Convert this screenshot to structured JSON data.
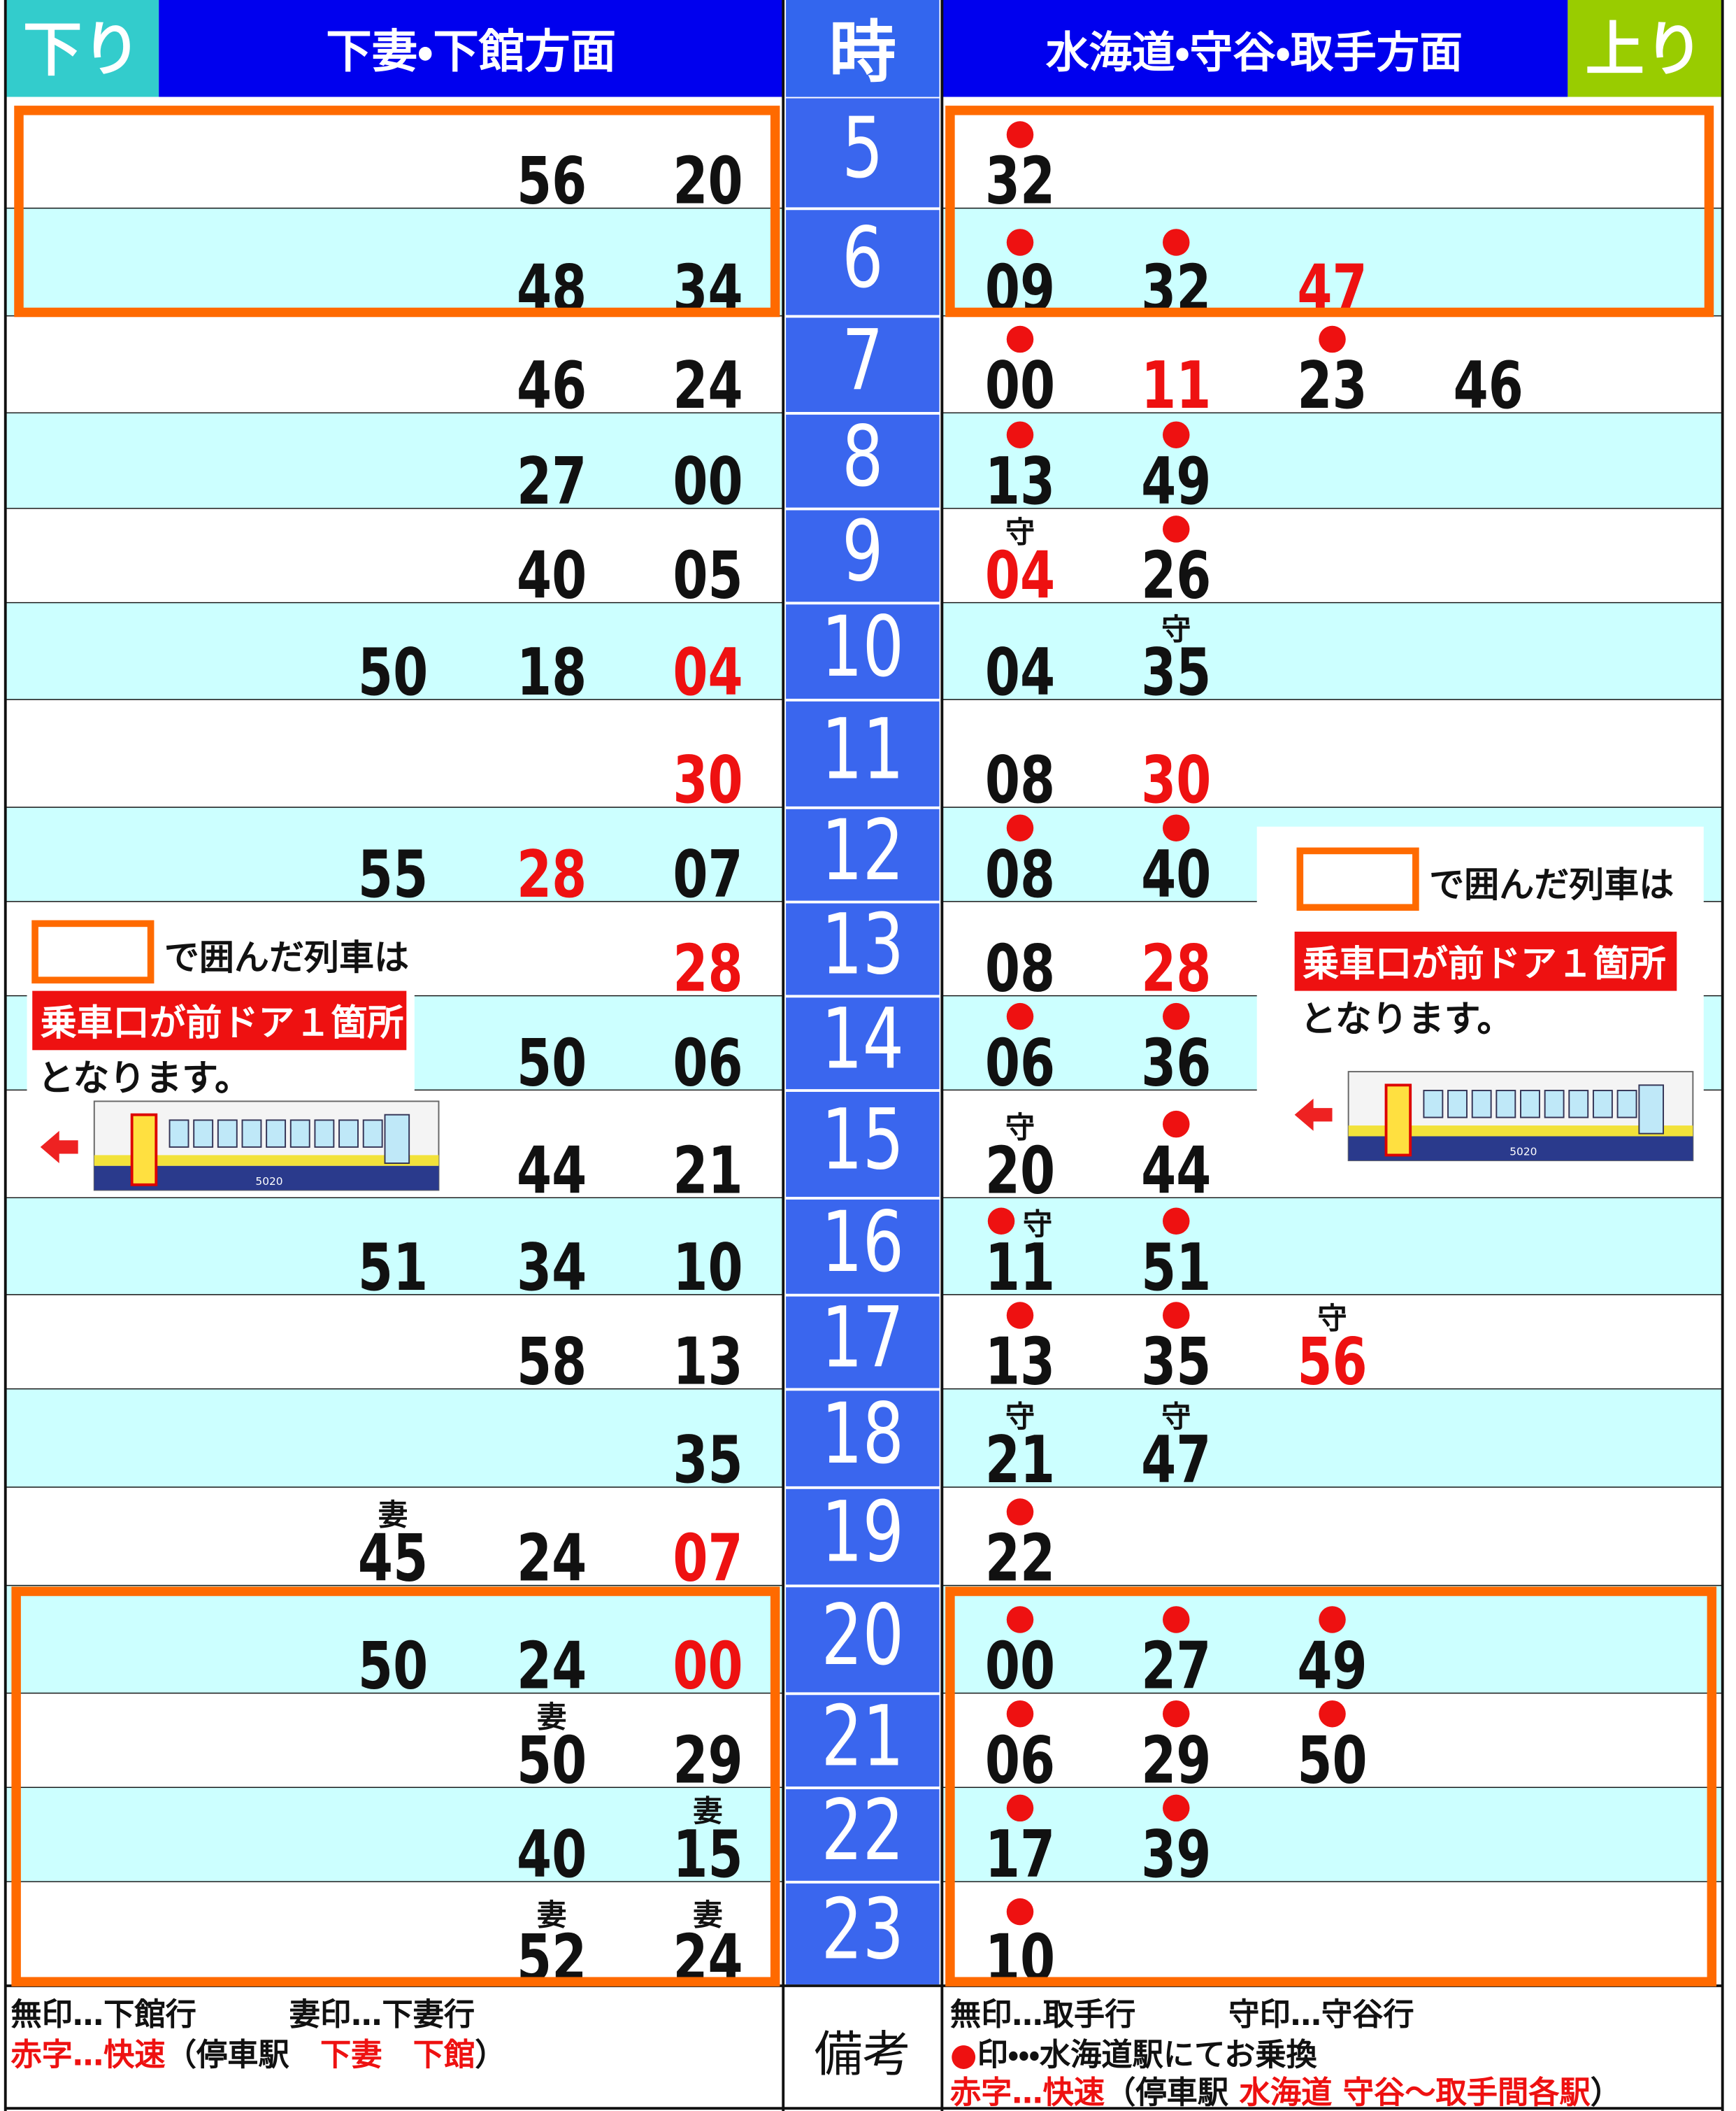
{
  "header": {
    "down_label": "下り",
    "down_direction": "下妻・下館方面",
    "hour_label": "時",
    "up_direction": "水海道・守谷・取手方面",
    "up_label": "上り"
  },
  "rows": [
    {
      "hour": 5,
      "down": [
        {
          "time": "56"
        },
        {
          "time": "20"
        }
      ],
      "up": [
        {
          "time": "32",
          "transfer": true
        }
      ]
    },
    {
      "hour": 6,
      "down": [
        {
          "time": "48"
        },
        {
          "time": "34"
        }
      ],
      "up": [
        {
          "time": "09",
          "transfer": true
        },
        {
          "time": "32",
          "transfer": true
        },
        {
          "time": "47",
          "rapid": true
        }
      ]
    },
    {
      "hour": 7,
      "down": [
        {
          "time": "46"
        },
        {
          "time": "24"
        }
      ],
      "up": [
        {
          "time": "00",
          "transfer": true
        },
        {
          "time": "11",
          "rapid": true
        },
        {
          "time": "23",
          "transfer": true
        },
        {
          "time": "46"
        }
      ]
    },
    {
      "hour": 8,
      "down": [
        {
          "time": "27"
        },
        {
          "time": "00"
        }
      ],
      "up": [
        {
          "time": "13",
          "transfer": true
        },
        {
          "time": "49",
          "transfer": true
        }
      ]
    },
    {
      "hour": 9,
      "down": [
        {
          "time": "40"
        },
        {
          "time": "05"
        }
      ],
      "up": [
        {
          "time": "04",
          "rapid": true,
          "mark": "守"
        },
        {
          "time": "26",
          "transfer": true
        }
      ]
    },
    {
      "hour": 10,
      "down": [
        {
          "time": "50"
        },
        {
          "time": "18"
        },
        {
          "time": "04",
          "rapid": true
        }
      ],
      "up": [
        {
          "time": "04"
        },
        {
          "time": "35",
          "mark": "守"
        }
      ]
    },
    {
      "hour": 11,
      "down": [
        {
          "time": "30",
          "rapid": true
        }
      ],
      "up": [
        {
          "time": "08"
        },
        {
          "time": "30",
          "rapid": true
        }
      ]
    },
    {
      "hour": 12,
      "down": [
        {
          "time": "55"
        },
        {
          "time": "28",
          "rapid": true
        },
        {
          "time": "07"
        }
      ],
      "up": [
        {
          "time": "08",
          "transfer": true
        },
        {
          "time": "40",
          "transfer": true
        }
      ]
    },
    {
      "hour": 13,
      "down": [
        {
          "time": "28",
          "rapid": true
        }
      ],
      "up": [
        {
          "time": "08"
        },
        {
          "time": "28",
          "rapid": true
        }
      ]
    },
    {
      "hour": 14,
      "down": [
        {
          "time": "50"
        },
        {
          "time": "06"
        }
      ],
      "up": [
        {
          "time": "06",
          "transfer": true
        },
        {
          "time": "36",
          "transfer": true
        }
      ]
    },
    {
      "hour": 15,
      "down": [
        {
          "time": "44"
        },
        {
          "time": "21"
        }
      ],
      "up": [
        {
          "time": "20",
          "mark": "守"
        },
        {
          "time": "44",
          "transfer": true
        }
      ]
    },
    {
      "hour": 16,
      "down": [
        {
          "time": "51"
        },
        {
          "time": "34"
        },
        {
          "time": "10"
        }
      ],
      "up": [
        {
          "time": "11",
          "transfer": true,
          "mark": "守"
        },
        {
          "time": "51",
          "transfer": true
        }
      ]
    },
    {
      "hour": 17,
      "down": [
        {
          "time": "58"
        },
        {
          "time": "13"
        }
      ],
      "up": [
        {
          "time": "13",
          "transfer": true
        },
        {
          "time": "35",
          "transfer": true
        },
        {
          "time": "56",
          "rapid": true,
          "mark": "守"
        }
      ]
    },
    {
      "hour": 18,
      "down": [
        {
          "time": "35"
        }
      ],
      "up": [
        {
          "time": "21",
          "mark": "守"
        },
        {
          "time": "47",
          "mark": "守"
        }
      ]
    },
    {
      "hour": 19,
      "down": [
        {
          "time": "45",
          "mark": "妻"
        },
        {
          "time": "24"
        },
        {
          "time": "07",
          "rapid": true
        }
      ],
      "up": [
        {
          "time": "22",
          "transfer": true
        }
      ]
    },
    {
      "hour": 20,
      "down": [
        {
          "time": "50"
        },
        {
          "time": "24"
        },
        {
          "time": "00",
          "rapid": true
        }
      ],
      "up": [
        {
          "time": "00",
          "transfer": true
        },
        {
          "time": "27",
          "transfer": true
        },
        {
          "time": "49",
          "transfer": true
        }
      ]
    },
    {
      "hour": 21,
      "down": [
        {
          "time": "50",
          "mark": "妻"
        },
        {
          "time": "29"
        }
      ],
      "up": [
        {
          "time": "06",
          "transfer": true
        },
        {
          "time": "29",
          "transfer": true
        },
        {
          "time": "50",
          "transfer": true
        }
      ]
    },
    {
      "hour": 22,
      "down": [
        {
          "time": "40"
        },
        {
          "time": "15",
          "mark": "妻"
        }
      ],
      "up": [
        {
          "time": "17",
          "transfer": true
        },
        {
          "time": "39",
          "transfer": true
        }
      ]
    },
    {
      "hour": 23,
      "down": [
        {
          "time": "52",
          "mark": "妻"
        },
        {
          "time": "24",
          "mark": "妻"
        }
      ],
      "up": [
        {
          "time": "10",
          "transfer": true
        }
      ]
    }
  ],
  "notes": [
    {
      "line1": "で囲んだ列車は",
      "line2": "乗車口が前ドア１箇所",
      "line3": "となります。",
      "train_number": "5020"
    },
    {
      "line1": "で囲んだ列車は",
      "line2": "乗車口が前ドア１箇所",
      "line3": "となります。",
      "train_number": "5020"
    }
  ],
  "footer": {
    "down_lines": [
      [
        {
          "text": "無印…下館行　　　妻印…下妻行"
        }
      ],
      [
        {
          "text": "赤字…快速",
          "red": true
        },
        {
          "text": "（停車駅　"
        },
        {
          "text": "下妻　下館",
          "red": true
        },
        {
          "text": "）"
        }
      ]
    ],
    "remarks_label": "備考",
    "up_lines": [
      [
        {
          "text": "無印…取手行　　　守印…守谷行"
        }
      ],
      [
        {
          "text": "●",
          "red": true
        },
        {
          "text": "印・・・水海道駅にてお乗換"
        }
      ],
      [
        {
          "text": "赤字…快速",
          "red": true
        },
        {
          "text": "（停車駅 "
        },
        {
          "text": "水海道 守谷～取手間各駅",
          "red": true
        },
        {
          "text": "）"
        }
      ]
    ]
  }
}
